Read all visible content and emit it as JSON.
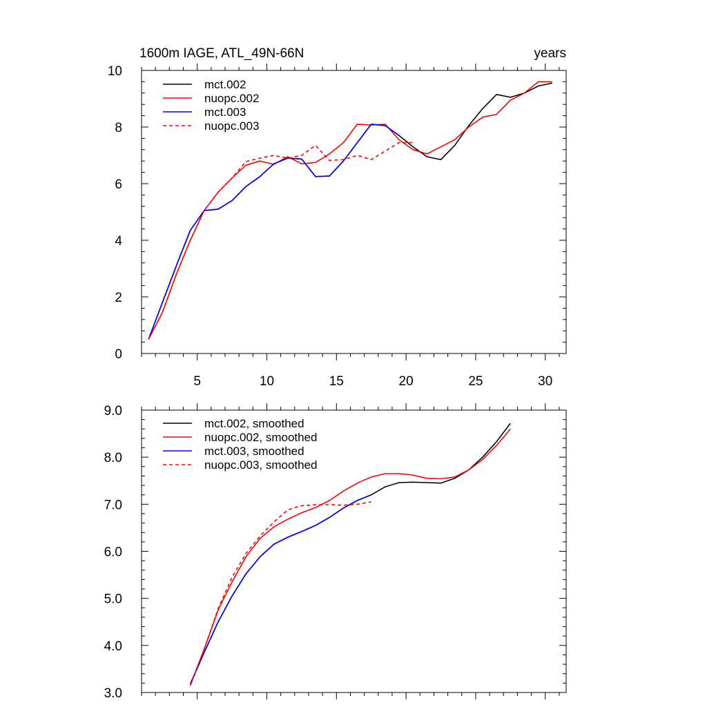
{
  "chart_data": [
    {
      "type": "line",
      "title": "1600m IAGE, ATL_49N-66N",
      "right_title": "years",
      "xlabel": "",
      "ylabel": "",
      "xlim": [
        1,
        31.5
      ],
      "ylim": [
        0,
        10
      ],
      "x_ticks": [
        5,
        10,
        15,
        20,
        25,
        30
      ],
      "x_tick_labels": [
        "5",
        "10",
        "15",
        "20",
        "25",
        "30"
      ],
      "y_ticks": [
        0,
        2,
        4,
        6,
        8,
        10
      ],
      "y_tick_labels": [
        "0",
        "2",
        "4",
        "6",
        "8",
        "10"
      ],
      "legend_position": "top-left",
      "series": [
        {
          "name": "mct.002",
          "color": "#000000",
          "dash": "solid",
          "x": [
            1.5,
            2.5,
            3.5,
            4.5,
            5.5,
            6.5,
            7.5,
            8.5,
            9.5,
            10.5,
            11.5,
            12.5,
            13.5,
            14.5,
            15.5,
            16.5,
            17.5,
            18.5,
            19.5,
            20.5,
            21.5,
            22.5,
            23.5,
            24.5,
            25.5,
            26.5,
            27.5,
            28.5,
            29.5,
            30.5
          ],
          "y": [
            0.5,
            1.8,
            3.1,
            4.35,
            5.05,
            5.1,
            5.4,
            5.9,
            6.25,
            6.7,
            6.9,
            6.87,
            6.25,
            6.27,
            6.8,
            7.45,
            8.1,
            8.05,
            7.7,
            7.3,
            6.95,
            6.85,
            7.35,
            8.05,
            8.65,
            9.15,
            9.05,
            9.2,
            9.45,
            9.55
          ]
        },
        {
          "name": "nuopc.002",
          "color": "#ff0000",
          "dash": "solid",
          "x": [
            1.5,
            2.5,
            3.5,
            4.5,
            5.5,
            6.5,
            7.5,
            8.5,
            9.5,
            10.5,
            11.5,
            12.5,
            13.5,
            14.5,
            15.5,
            16.5,
            17.5,
            18.5,
            19.5,
            20.5,
            21.5,
            22.5,
            23.5,
            24.5,
            25.5,
            26.5,
            27.5,
            28.5,
            29.5,
            30.5
          ],
          "y": [
            0.5,
            1.45,
            2.8,
            4.0,
            5.05,
            5.7,
            6.2,
            6.65,
            6.8,
            6.68,
            6.95,
            6.7,
            6.75,
            7.05,
            7.45,
            8.1,
            8.07,
            8.1,
            7.55,
            7.2,
            7.05,
            7.3,
            7.55,
            8.0,
            8.35,
            8.45,
            8.95,
            9.2,
            9.6,
            9.6
          ]
        },
        {
          "name": "mct.003",
          "color": "#0000ff",
          "dash": "solid",
          "x": [
            1.5,
            2.5,
            3.5,
            4.5,
            5.5,
            6.5,
            7.5,
            8.5,
            9.5,
            10.5,
            11.5,
            12.5,
            13.5,
            14.5,
            15.5,
            16.5,
            17.5,
            18.5,
            19.5
          ],
          "y": [
            0.5,
            1.8,
            3.1,
            4.35,
            5.05,
            5.1,
            5.4,
            5.9,
            6.25,
            6.7,
            6.9,
            6.87,
            6.25,
            6.27,
            6.8,
            7.45,
            8.1,
            8.05,
            7.7
          ]
        },
        {
          "name": "nuopc.003",
          "color": "#ff0000",
          "dash": "dashed",
          "x": [
            1.5,
            2.5,
            3.5,
            4.5,
            5.5,
            6.5,
            7.5,
            8.5,
            9.5,
            10.5,
            11.5,
            12.5,
            13.5,
            14.5,
            15.5,
            16.5,
            17.5,
            18.5,
            19.5,
            20.5
          ],
          "y": [
            0.5,
            1.45,
            2.8,
            4.0,
            5.05,
            5.7,
            6.2,
            6.78,
            6.9,
            7.0,
            6.9,
            7.0,
            7.35,
            6.82,
            6.85,
            7.0,
            6.85,
            7.15,
            7.45,
            7.45
          ]
        }
      ]
    },
    {
      "type": "line",
      "title": "",
      "xlabel": "",
      "ylabel": "",
      "xlim": [
        1,
        31.5
      ],
      "ylim": [
        3,
        9
      ],
      "x_ticks": [
        5,
        10,
        15,
        20,
        25,
        30
      ],
      "x_tick_labels": [],
      "y_ticks": [
        3,
        4,
        5,
        6,
        7,
        8,
        9
      ],
      "y_tick_labels": [
        "3.0",
        "4.0",
        "5.0",
        "6.0",
        "7.0",
        "8.0",
        "9.0"
      ],
      "legend_position": "top-left",
      "series": [
        {
          "name": "mct.002, smoothed",
          "color": "#000000",
          "dash": "solid",
          "x": [
            4.5,
            5.5,
            6.5,
            7.5,
            8.5,
            9.5,
            10.5,
            11.5,
            12.5,
            13.5,
            14.5,
            15.5,
            16.5,
            17.5,
            18.5,
            19.5,
            20.5,
            21.5,
            22.5,
            23.5,
            24.5,
            25.5,
            26.5,
            27.5
          ],
          "y": [
            3.18,
            3.85,
            4.5,
            5.05,
            5.52,
            5.88,
            6.15,
            6.3,
            6.42,
            6.55,
            6.72,
            6.92,
            7.08,
            7.2,
            7.37,
            7.46,
            7.47,
            7.46,
            7.45,
            7.55,
            7.73,
            8.0,
            8.33,
            8.72
          ]
        },
        {
          "name": "nuopc.002, smoothed",
          "color": "#ff0000",
          "dash": "solid",
          "x": [
            4.5,
            5.5,
            6.5,
            7.5,
            8.5,
            9.5,
            10.5,
            11.5,
            12.5,
            13.5,
            14.5,
            15.5,
            16.5,
            17.5,
            18.5,
            19.5,
            20.5,
            21.5,
            22.5,
            23.5,
            24.5,
            25.5,
            26.5,
            27.5
          ],
          "y": [
            3.15,
            3.92,
            4.75,
            5.35,
            5.88,
            6.27,
            6.52,
            6.68,
            6.82,
            6.93,
            7.08,
            7.28,
            7.45,
            7.58,
            7.65,
            7.65,
            7.62,
            7.55,
            7.54,
            7.58,
            7.73,
            7.95,
            8.25,
            8.6
          ]
        },
        {
          "name": "mct.003, smoothed",
          "color": "#0000ff",
          "dash": "solid",
          "x": [
            4.5,
            5.5,
            6.5,
            7.5,
            8.5,
            9.5,
            10.5,
            11.5,
            12.5,
            13.5,
            14.5,
            15.5,
            16.5,
            17.5
          ],
          "y": [
            3.18,
            3.85,
            4.5,
            5.05,
            5.52,
            5.88,
            6.15,
            6.3,
            6.42,
            6.55,
            6.72,
            6.92,
            7.08,
            7.2
          ]
        },
        {
          "name": "nuopc.003, smoothed",
          "color": "#ff0000",
          "dash": "dashed",
          "x": [
            4.5,
            5.5,
            6.5,
            7.5,
            8.5,
            9.5,
            10.5,
            11.5,
            12.5,
            13.5,
            14.5,
            15.5,
            16.5,
            17.5
          ],
          "y": [
            3.15,
            3.92,
            4.78,
            5.45,
            5.95,
            6.32,
            6.62,
            6.88,
            6.97,
            6.99,
            6.99,
            6.98,
            7.0,
            7.05
          ]
        }
      ]
    }
  ]
}
